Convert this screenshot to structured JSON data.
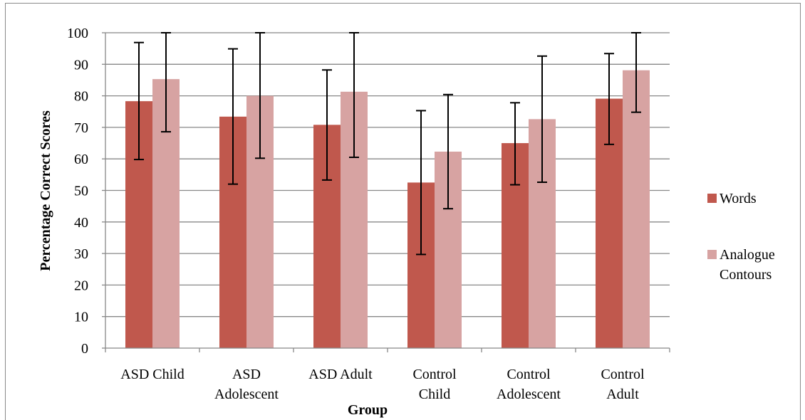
{
  "chart_data": {
    "type": "bar",
    "title": "",
    "xlabel": "Group",
    "ylabel": "Percentage Correct Scores",
    "ylim": [
      0,
      100
    ],
    "yticks": [
      0,
      10,
      20,
      30,
      40,
      50,
      60,
      70,
      80,
      90,
      100
    ],
    "grid": true,
    "legend_position": "right",
    "categories": [
      [
        "ASD Child"
      ],
      [
        "ASD",
        "Adolescent"
      ],
      [
        "ASD Adult"
      ],
      [
        "Control",
        "Child"
      ],
      [
        "Control",
        "Adolescent"
      ],
      [
        "Control",
        "Adult"
      ]
    ],
    "series": [
      {
        "name": "Words",
        "color": "#c0584d",
        "values": [
          78.3,
          73.4,
          70.8,
          52.5,
          65.0,
          79.1
        ],
        "error_low": [
          59.8,
          52.0,
          53.3,
          29.7,
          51.8,
          64.6
        ],
        "error_high": [
          96.9,
          94.9,
          88.2,
          75.3,
          77.8,
          93.4
        ]
      },
      {
        "name": "Analogue Contours",
        "label_lines": [
          "Analogue",
          "Contours"
        ],
        "color": "#d7a3a2",
        "values": [
          85.3,
          80.0,
          81.3,
          62.3,
          72.6,
          88.1
        ],
        "error_low": [
          68.6,
          60.2,
          60.5,
          44.2,
          52.6,
          74.8
        ],
        "error_high": [
          100,
          100,
          100,
          80.4,
          92.6,
          100
        ]
      }
    ]
  }
}
